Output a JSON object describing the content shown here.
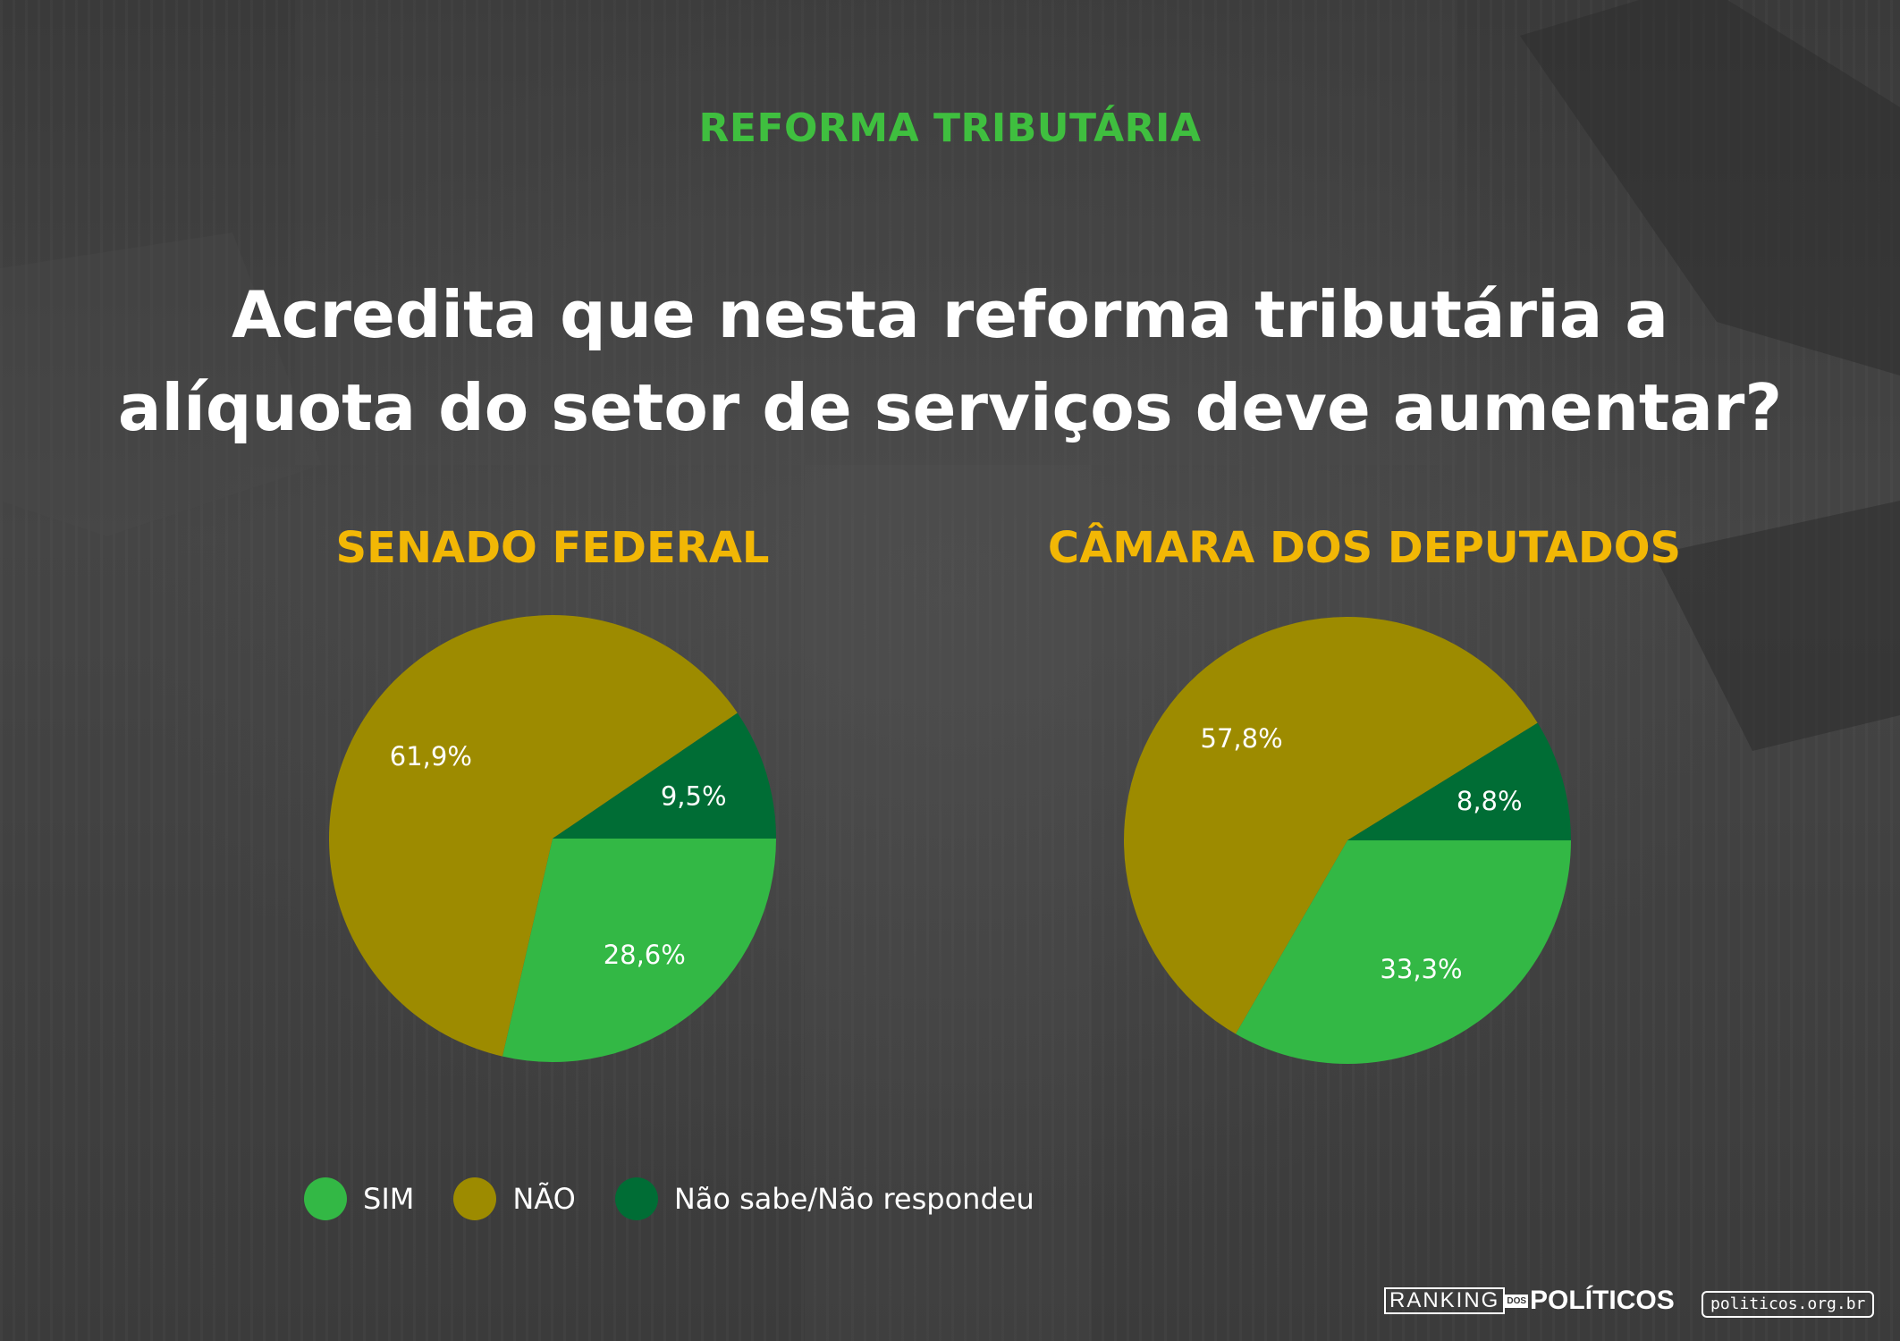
{
  "kicker": "REFORMA TRIBUTÁRIA",
  "question_line1": "Acredita que nesta reforma tributária a",
  "question_line2": "alíquota do setor de serviços deve aumentar?",
  "colors": {
    "sim": "#33b845",
    "nao": "#9d8b00",
    "nao_sabe": "#006d35",
    "kicker": "#3fbf3f",
    "chart_title": "#f2b705"
  },
  "chart_data": [
    {
      "type": "pie",
      "title": "SENADO FEDERAL",
      "categories": [
        "SIM",
        "NÃO",
        "Não sabe/Não respondeu"
      ],
      "values": [
        28.6,
        61.9,
        9.5
      ],
      "labels": [
        "28,6%",
        "61,9%",
        "9,5%"
      ]
    },
    {
      "type": "pie",
      "title": "CÂMARA DOS DEPUTADOS",
      "categories": [
        "SIM",
        "NÃO",
        "Não sabe/Não respondeu"
      ],
      "values": [
        33.3,
        57.8,
        8.8
      ],
      "labels": [
        "33,3%",
        "57,8%",
        "8,8%"
      ]
    }
  ],
  "legend": [
    {
      "label": "SIM",
      "color": "#33b845"
    },
    {
      "label": "NÃO",
      "color": "#9d8b00"
    },
    {
      "label": "Não sabe/Não respondeu",
      "color": "#006d35"
    }
  ],
  "footer": {
    "logo_ranking": "RANKING",
    "logo_dos": "DOS",
    "logo_politicos": "POLÍTICOS",
    "site": "politicos.org.br"
  }
}
